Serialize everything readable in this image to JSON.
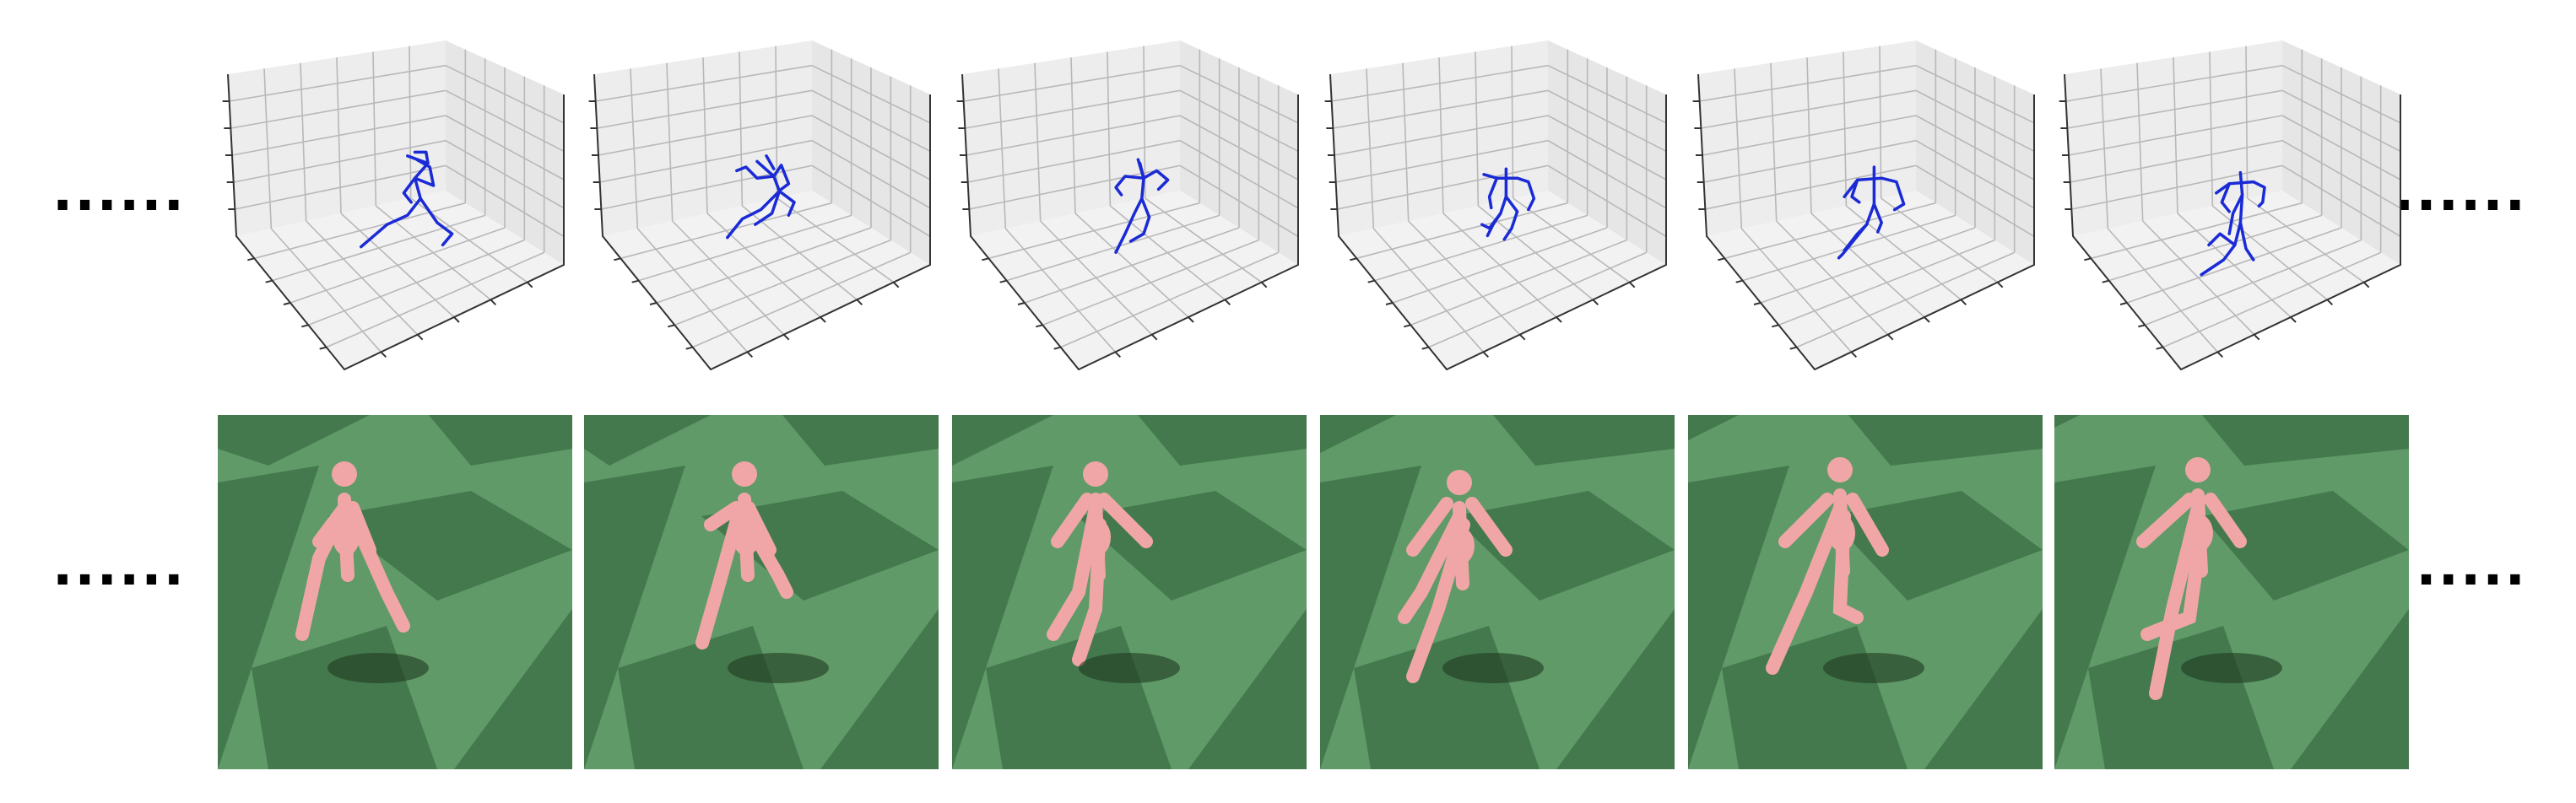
{
  "figure": {
    "ellipsis": {
      "top_left": "......",
      "top_right": "......",
      "bottom_left": "......",
      "bottom_right": "......"
    },
    "frame_count": 6,
    "skeleton_color": "#1a2bd6",
    "floor_colors": {
      "light": "#5f9a68",
      "dark": "#3b6e44"
    },
    "character_color": "#f0a6a6"
  }
}
